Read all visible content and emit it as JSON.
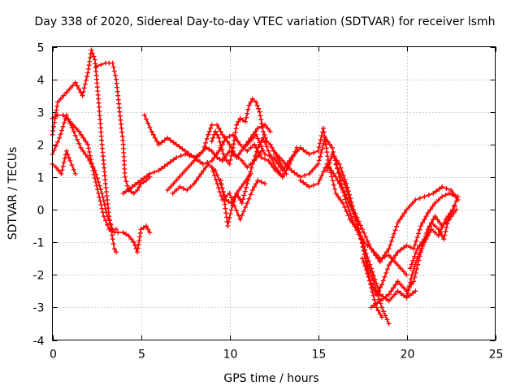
{
  "chart_data": {
    "type": "scatter",
    "title": "Day 338 of 2020, Sidereal Day-to-day VTEC variation (SDTVAR) for receiver lsmh",
    "xlabel": "GPS time / hours",
    "ylabel": "SDTVAR / TECUs",
    "xlim": [
      0,
      25
    ],
    "ylim": [
      -4,
      5
    ],
    "xticks": [
      "0",
      "5",
      "10",
      "15",
      "20",
      "25"
    ],
    "yticks": [
      "-4",
      "-3",
      "-2",
      "-1",
      "0",
      "1",
      "2",
      "3",
      "4",
      "5"
    ],
    "grid": true,
    "marker": "plus",
    "color": "#ff0000",
    "series": [
      {
        "x": [
          0.0,
          0.3,
          0.8,
          1.3,
          1.7,
          2.0,
          2.2,
          2.4,
          2.6,
          2.8,
          3.0,
          3.2,
          3.4,
          3.5,
          3.6
        ],
        "y": [
          2.3,
          3.3,
          3.6,
          3.9,
          3.5,
          4.2,
          4.9,
          4.6,
          3.4,
          2.0,
          0.8,
          -0.2,
          -0.9,
          -1.2,
          -1.3
        ]
      },
      {
        "x": [
          2.5,
          3.0,
          3.4,
          3.6,
          3.8,
          4.0,
          4.1,
          4.3,
          4.6,
          4.8,
          5.0,
          5.3,
          5.5
        ],
        "y": [
          4.4,
          4.5,
          4.5,
          4.0,
          3.0,
          2.0,
          1.0,
          0.6,
          0.5,
          0.6,
          0.8,
          0.9,
          1.0
        ]
      },
      {
        "x": [
          0.0,
          0.3,
          0.6,
          1.0,
          1.5,
          2.0,
          2.3,
          2.6,
          2.9,
          3.2,
          3.5,
          3.7,
          4.0,
          4.3,
          4.6,
          4.8,
          5.0,
          5.3,
          5.5
        ],
        "y": [
          2.8,
          2.9,
          2.9,
          2.7,
          2.4,
          2.0,
          1.2,
          0.5,
          -0.2,
          -0.6,
          -0.7,
          -0.7,
          -0.7,
          -0.8,
          -1.0,
          -1.3,
          -0.6,
          -0.5,
          -0.7
        ]
      },
      {
        "x": [
          0.0,
          0.4,
          0.8,
          1.2,
          1.6,
          2.0,
          2.4,
          2.8,
          3.1,
          3.4,
          3.6
        ],
        "y": [
          1.7,
          2.2,
          2.9,
          2.4,
          1.9,
          1.6,
          1.2,
          0.5,
          -0.2,
          -0.6,
          -0.6
        ]
      },
      {
        "x": [
          0.0,
          0.2,
          0.5,
          0.8,
          1.0,
          1.3
        ],
        "y": [
          1.4,
          1.3,
          1.1,
          1.8,
          1.5,
          1.1
        ]
      },
      {
        "x": [
          5.2,
          5.6,
          6.0,
          6.5,
          7.0,
          7.5,
          8.0,
          8.3,
          8.7,
          9.0,
          9.3,
          9.6,
          10.0,
          10.4,
          10.8,
          11.2,
          11.6,
          12.0,
          12.3
        ],
        "y": [
          2.9,
          2.4,
          2.0,
          2.2,
          2.0,
          1.8,
          1.6,
          1.7,
          1.9,
          1.8,
          1.6,
          1.5,
          1.8,
          1.6,
          1.9,
          2.2,
          2.5,
          2.6,
          2.4
        ]
      },
      {
        "x": [
          4.0,
          4.5,
          5.0,
          5.5,
          6.0,
          6.5,
          7.0,
          7.5,
          8.0,
          8.5,
          9.0,
          9.4,
          9.8,
          10.2,
          10.6,
          11.0,
          11.4,
          11.8,
          12.2,
          12.6,
          13.0
        ],
        "y": [
          0.5,
          0.7,
          0.9,
          1.1,
          1.2,
          1.4,
          1.6,
          1.7,
          1.6,
          1.4,
          1.5,
          1.8,
          2.2,
          2.3,
          2.0,
          1.8,
          2.0,
          1.6,
          1.5,
          1.2,
          1.0
        ]
      },
      {
        "x": [
          6.5,
          7.0,
          7.5,
          8.0,
          8.5,
          8.8,
          9.0,
          9.3,
          9.6,
          10.0,
          10.3,
          10.7,
          11.0,
          11.4,
          11.8
        ],
        "y": [
          0.6,
          0.9,
          1.2,
          1.5,
          1.8,
          2.3,
          2.6,
          2.6,
          2.3,
          2.0,
          1.7,
          1.5,
          1.3,
          1.5,
          1.8
        ]
      },
      {
        "x": [
          6.8,
          7.2,
          7.6,
          8.0,
          8.4,
          8.8,
          9.2,
          9.5,
          9.8,
          10.1,
          10.4,
          10.8,
          11.2
        ],
        "y": [
          0.5,
          0.7,
          0.6,
          0.8,
          1.1,
          1.4,
          1.2,
          0.8,
          0.3,
          0.2,
          0.5,
          0.8,
          1.1
        ]
      },
      {
        "x": [
          9.0,
          9.2,
          9.4,
          9.7,
          10.0,
          10.2,
          10.4,
          10.6,
          10.9,
          11.1,
          11.3,
          11.5,
          11.7,
          11.9,
          12.1,
          12.3,
          12.6,
          12.9,
          13.2
        ],
        "y": [
          2.1,
          2.4,
          2.2,
          1.6,
          1.4,
          1.9,
          2.6,
          2.8,
          2.7,
          3.2,
          3.4,
          3.3,
          3.0,
          2.4,
          2.1,
          2.0,
          1.7,
          1.4,
          1.1
        ]
      },
      {
        "x": [
          9.5,
          9.7,
          9.9,
          10.1,
          10.4,
          10.7,
          11.0,
          11.3,
          11.6,
          11.9,
          12.2,
          12.6,
          13.0,
          13.4,
          13.8
        ],
        "y": [
          0.9,
          0.3,
          -0.5,
          0.0,
          0.5,
          0.2,
          0.8,
          1.4,
          1.9,
          2.2,
          1.8,
          1.3,
          1.0,
          1.4,
          1.9
        ]
      },
      {
        "x": [
          9.0,
          9.3,
          9.6,
          10.0,
          10.3,
          10.6,
          11.0,
          11.3,
          11.6,
          12.0
        ],
        "y": [
          1.3,
          0.8,
          0.3,
          0.5,
          0.1,
          -0.3,
          0.2,
          0.6,
          0.9,
          0.8
        ]
      },
      {
        "x": [
          11.0,
          11.5,
          12.0,
          12.5,
          13.0,
          13.5,
          14.0,
          14.5,
          15.0,
          15.3,
          15.6,
          16.0,
          16.4,
          16.8,
          17.2,
          17.6,
          18.0,
          18.5,
          19.0,
          19.5,
          20.0
        ],
        "y": [
          2.0,
          2.3,
          1.7,
          1.6,
          1.2,
          1.6,
          1.9,
          1.7,
          1.8,
          2.5,
          1.4,
          0.5,
          0.2,
          -0.3,
          -0.6,
          -1.0,
          -1.2,
          -1.5,
          -1.4,
          -1.7,
          -2.0
        ]
      },
      {
        "x": [
          12.5,
          13.0,
          13.5,
          14.0,
          14.5,
          15.0,
          15.4,
          15.8,
          16.2,
          16.6,
          17.0,
          17.5,
          18.0,
          18.5,
          19.0,
          19.5,
          20.0,
          20.5
        ],
        "y": [
          1.8,
          1.5,
          1.2,
          1.0,
          1.1,
          1.4,
          2.2,
          1.9,
          1.0,
          0.2,
          -0.4,
          -1.0,
          -1.8,
          -2.6,
          -2.8,
          -2.5,
          -2.7,
          -2.5
        ]
      },
      {
        "x": [
          14.0,
          14.5,
          15.0,
          15.5,
          16.0,
          16.5,
          17.0,
          17.4,
          17.7,
          18.0,
          18.3,
          18.6,
          19.0
        ],
        "y": [
          0.9,
          0.7,
          0.8,
          1.4,
          1.0,
          0.5,
          -0.1,
          -0.8,
          -1.5,
          -2.0,
          -2.5,
          -3.0,
          -3.5
        ]
      },
      {
        "x": [
          15.5,
          15.8,
          16.2,
          16.6,
          17.0,
          17.4,
          17.7,
          18.0,
          18.3,
          18.6
        ],
        "y": [
          1.2,
          1.7,
          1.4,
          0.8,
          0.0,
          -0.8,
          -1.6,
          -2.4,
          -3.0,
          -3.3
        ]
      },
      {
        "x": [
          16.0,
          16.5,
          17.0,
          17.5,
          18.0,
          18.5,
          19.0,
          19.5,
          20.0,
          20.5,
          21.0,
          21.5,
          22.0,
          22.5,
          22.9
        ],
        "y": [
          1.4,
          0.8,
          0.0,
          -0.6,
          -1.2,
          -1.6,
          -1.2,
          -0.4,
          0.0,
          0.3,
          0.4,
          0.5,
          0.7,
          0.6,
          0.3
        ]
      },
      {
        "x": [
          17.5,
          18.0,
          18.3,
          18.6,
          19.0,
          19.5,
          20.0,
          20.4,
          20.8,
          21.2,
          21.6,
          22.0,
          22.4,
          22.8
        ],
        "y": [
          -1.5,
          -2.3,
          -2.6,
          -2.3,
          -1.7,
          -1.3,
          -1.1,
          -1.2,
          -0.5,
          -0.1,
          0.2,
          0.4,
          0.5,
          0.4
        ]
      },
      {
        "x": [
          18.0,
          18.5,
          19.0,
          19.5,
          20.0,
          20.4,
          20.8,
          21.2,
          21.6,
          22.0,
          22.4,
          22.8
        ],
        "y": [
          -3.0,
          -2.8,
          -2.6,
          -2.2,
          -2.5,
          -2.2,
          -1.3,
          -0.6,
          -0.2,
          -0.5,
          -0.3,
          0.0
        ]
      },
      {
        "x": [
          20.0,
          20.3,
          20.6,
          21.0,
          21.4,
          21.8,
          22.2,
          22.6,
          22.9
        ],
        "y": [
          -2.7,
          -2.0,
          -1.5,
          -1.0,
          -0.6,
          -0.8,
          -0.3,
          0.0,
          0.4
        ]
      },
      {
        "x": [
          20.2,
          20.6,
          21.0,
          21.4,
          21.8,
          22.1,
          22.4,
          22.7
        ],
        "y": [
          -1.8,
          -1.2,
          -0.9,
          -0.4,
          -0.6,
          -0.9,
          -0.2,
          0.1
        ]
      }
    ]
  }
}
